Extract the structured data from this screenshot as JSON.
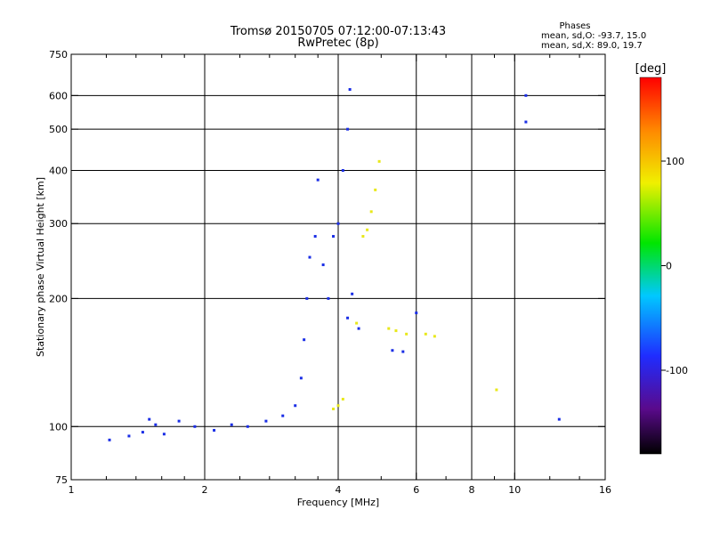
{
  "header": {
    "title_line1": "Tromsø 20150705 07:12:00-07:13:43",
    "title_line2": "RwPretec (8p)"
  },
  "stats": {
    "heading": "Phases",
    "line_o": "mean, sd,O: -93.7, 15.0",
    "line_x": "mean, sd,X:  89.0, 19.7"
  },
  "chart_data": {
    "type": "scatter",
    "title": "Tromsø 20150705 07:12:00-07:13:43",
    "subtitle": "RwPretec (8p)",
    "xlabel": "Frequency [MHz]",
    "ylabel": "Stationary phase Virtual Height [km]",
    "xscale": "log2",
    "yscale": "log",
    "xlim": [
      1,
      16
    ],
    "ylim": [
      75,
      750
    ],
    "xticks": [
      1,
      2,
      4,
      6,
      8,
      10,
      16
    ],
    "xtick_labels": [
      "1",
      "2",
      "4",
      "6",
      "8",
      "10",
      "16"
    ],
    "x_minor_ticks": [
      1.2,
      1.4,
      1.6,
      1.8,
      2.4,
      2.8,
      3.2,
      3.6,
      5,
      7,
      9,
      12,
      14
    ],
    "yticks": [
      75,
      100,
      200,
      300,
      400,
      500,
      600,
      750
    ],
    "ytick_labels": [
      "75",
      "100",
      "200",
      "300",
      "400",
      "500",
      "600",
      "750"
    ],
    "x_gridlines": [
      2,
      4,
      6,
      8,
      10
    ],
    "y_gridlines": [
      100,
      200,
      300,
      400,
      500,
      600
    ],
    "grid": true,
    "colorbar": {
      "label": "[deg]",
      "range": [
        -180,
        180
      ],
      "ticks": [
        100,
        0,
        -100
      ],
      "tick_labels": [
        "100",
        "0",
        "-100"
      ],
      "colormap": "rainbow (black → purple → blue → cyan → green → yellow → red)"
    },
    "colors": {
      "o_trace": "#1a2ee6",
      "x_trace": "#e8e81a",
      "noise_cyan": "#18c6e6"
    },
    "series": [
      {
        "values": [
          {
            "x": 1.22,
            "y": 93
          },
          {
            "x": 1.35,
            "y": 95
          },
          {
            "x": 1.45,
            "y": 97
          },
          {
            "x": 1.5,
            "y": 104
          },
          {
            "x": 1.55,
            "y": 101
          },
          {
            "x": 1.62,
            "y": 96
          },
          {
            "x": 1.75,
            "y": 103
          },
          {
            "x": 1.9,
            "y": 100
          },
          {
            "x": 2.1,
            "y": 98
          },
          {
            "x": 2.3,
            "y": 101
          },
          {
            "x": 2.5,
            "y": 100
          },
          {
            "x": 2.75,
            "y": 103
          },
          {
            "x": 3.0,
            "y": 106
          },
          {
            "x": 3.2,
            "y": 112
          },
          {
            "x": 3.3,
            "y": 130
          },
          {
            "x": 3.35,
            "y": 160
          },
          {
            "x": 3.4,
            "y": 200
          },
          {
            "x": 3.45,
            "y": 250
          },
          {
            "x": 3.55,
            "y": 280
          },
          {
            "x": 3.6,
            "y": 380
          },
          {
            "x": 3.7,
            "y": 240
          },
          {
            "x": 3.8,
            "y": 200
          },
          {
            "x": 3.9,
            "y": 280
          },
          {
            "x": 4.0,
            "y": 300
          },
          {
            "x": 4.1,
            "y": 400
          },
          {
            "x": 4.2,
            "y": 500
          },
          {
            "x": 4.25,
            "y": 620
          },
          {
            "x": 4.3,
            "y": 205
          },
          {
            "x": 4.2,
            "y": 180
          },
          {
            "x": 4.45,
            "y": 170
          },
          {
            "x": 5.3,
            "y": 151
          },
          {
            "x": 5.6,
            "y": 150
          },
          {
            "x": 6.0,
            "y": 185
          },
          {
            "x": 10.6,
            "y": 600
          },
          {
            "x": 10.6,
            "y": 520
          },
          {
            "x": 12.6,
            "y": 104
          }
        ]
      },
      {
        "values": [
          {
            "x": 3.9,
            "y": 110
          },
          {
            "x": 4.0,
            "y": 112
          },
          {
            "x": 4.1,
            "y": 116
          },
          {
            "x": 4.4,
            "y": 175
          },
          {
            "x": 4.55,
            "y": 280
          },
          {
            "x": 4.65,
            "y": 290
          },
          {
            "x": 4.75,
            "y": 320
          },
          {
            "x": 4.85,
            "y": 360
          },
          {
            "x": 4.95,
            "y": 420
          },
          {
            "x": 5.2,
            "y": 170
          },
          {
            "x": 5.4,
            "y": 168
          },
          {
            "x": 5.7,
            "y": 165
          },
          {
            "x": 6.3,
            "y": 165
          },
          {
            "x": 6.6,
            "y": 163
          },
          {
            "x": 9.1,
            "y": 122
          }
        ]
      }
    ]
  }
}
